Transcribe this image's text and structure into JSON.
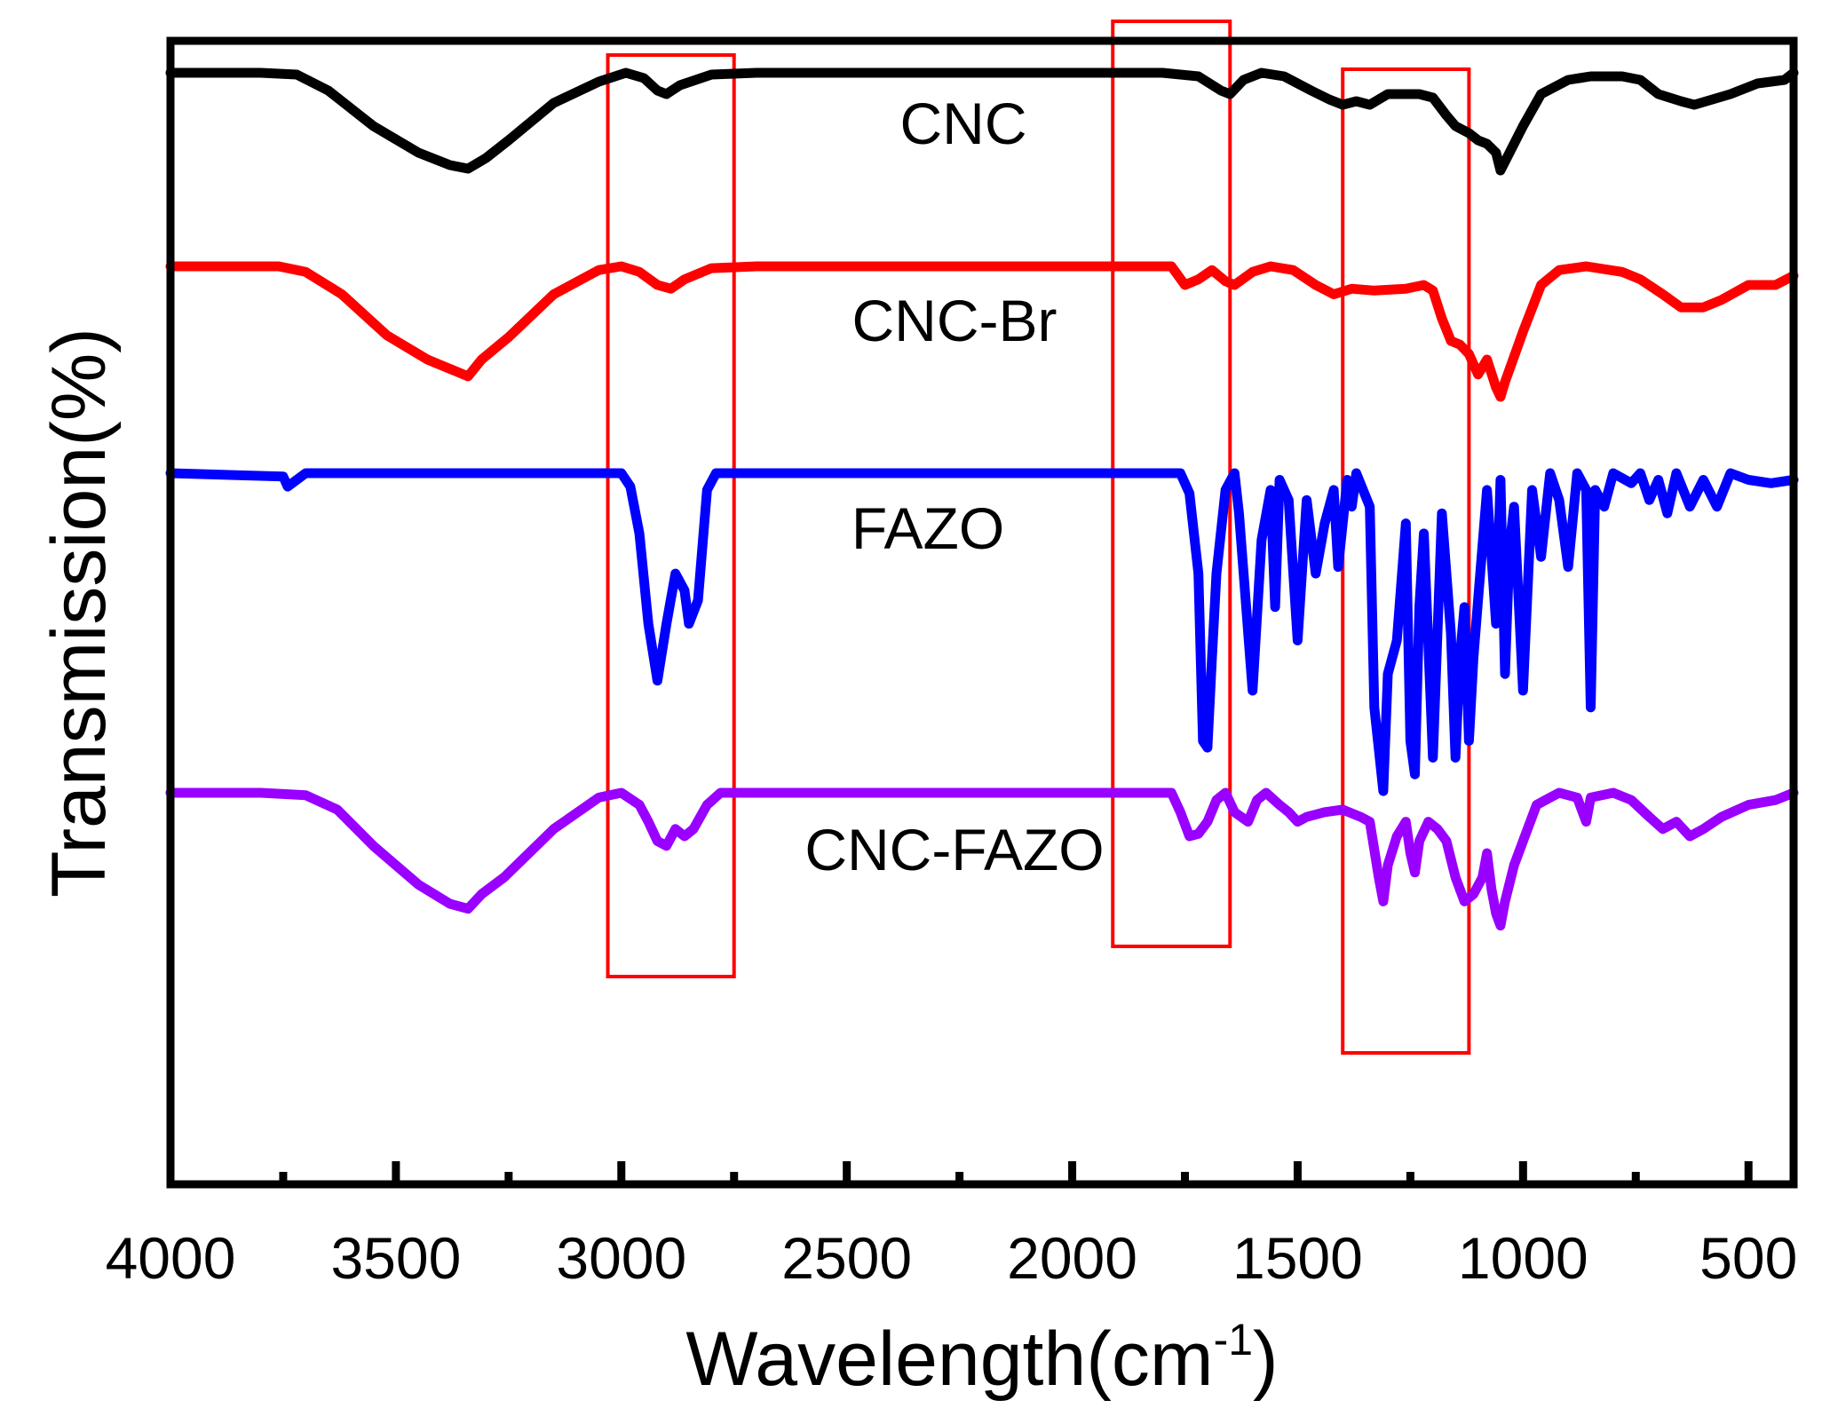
{
  "chart_data": {
    "type": "line",
    "title": "",
    "xlabel": "Wavelength(cm",
    "xlabel_sup": "-1",
    "xlabel_close": ")",
    "ylabel": "Transmission(%)",
    "xlim": [
      4000,
      400
    ],
    "x_reversed": true,
    "y_ticks_shown": false,
    "grid": false,
    "legend": "none",
    "x_ticks": [
      4000,
      3500,
      3000,
      2500,
      2000,
      1500,
      1000,
      500
    ],
    "x_tick_labels": [
      "4000",
      "3500",
      "3000",
      "2500",
      "2000",
      "1500",
      "1000",
      "500"
    ],
    "x_minor_ticks": [
      3750,
      3250,
      2750,
      2250,
      1750,
      1250,
      750
    ],
    "highlight_boxes": [
      {
        "x_from": 3030,
        "x_to": 2750,
        "color": "#ff0000"
      },
      {
        "x_from": 1910,
        "x_to": 1650,
        "color": "#ff0000"
      },
      {
        "x_from": 1400,
        "x_to": 1120,
        "color": "#ff0000"
      }
    ],
    "series": [
      {
        "name": "CNC",
        "color": "#000000",
        "offset": 3,
        "label_x": 2000,
        "points": [
          [
            4000,
            1.0
          ],
          [
            3800,
            1.0
          ],
          [
            3720,
            0.99
          ],
          [
            3650,
            0.9
          ],
          [
            3550,
            0.7
          ],
          [
            3450,
            0.55
          ],
          [
            3380,
            0.48
          ],
          [
            3340,
            0.46
          ],
          [
            3300,
            0.52
          ],
          [
            3250,
            0.62
          ],
          [
            3150,
            0.83
          ],
          [
            3050,
            0.95
          ],
          [
            2990,
            1.0
          ],
          [
            2950,
            0.97
          ],
          [
            2920,
            0.9
          ],
          [
            2900,
            0.88
          ],
          [
            2870,
            0.93
          ],
          [
            2800,
            0.99
          ],
          [
            2700,
            1.0
          ],
          [
            1800,
            1.0
          ],
          [
            1720,
            0.98
          ],
          [
            1670,
            0.9
          ],
          [
            1650,
            0.88
          ],
          [
            1620,
            0.96
          ],
          [
            1580,
            1.0
          ],
          [
            1530,
            0.98
          ],
          [
            1470,
            0.9
          ],
          [
            1430,
            0.85
          ],
          [
            1400,
            0.82
          ],
          [
            1370,
            0.84
          ],
          [
            1340,
            0.82
          ],
          [
            1300,
            0.88
          ],
          [
            1230,
            0.88
          ],
          [
            1200,
            0.86
          ],
          [
            1170,
            0.76
          ],
          [
            1150,
            0.7
          ],
          [
            1120,
            0.66
          ],
          [
            1100,
            0.62
          ],
          [
            1080,
            0.6
          ],
          [
            1060,
            0.55
          ],
          [
            1050,
            0.45
          ],
          [
            1040,
            0.5
          ],
          [
            1000,
            0.7
          ],
          [
            960,
            0.88
          ],
          [
            900,
            0.96
          ],
          [
            850,
            0.98
          ],
          [
            780,
            0.98
          ],
          [
            740,
            0.96
          ],
          [
            700,
            0.88
          ],
          [
            650,
            0.84
          ],
          [
            620,
            0.82
          ],
          [
            580,
            0.85
          ],
          [
            540,
            0.88
          ],
          [
            480,
            0.94
          ],
          [
            420,
            0.96
          ],
          [
            400,
            1.0
          ]
        ]
      },
      {
        "name": "CNC-Br",
        "color": "#ff0000",
        "offset": 2,
        "label_x": 2000,
        "points": [
          [
            4000,
            1.0
          ],
          [
            3760,
            1.0
          ],
          [
            3700,
            0.97
          ],
          [
            3620,
            0.85
          ],
          [
            3520,
            0.63
          ],
          [
            3430,
            0.5
          ],
          [
            3370,
            0.44
          ],
          [
            3340,
            0.41
          ],
          [
            3310,
            0.5
          ],
          [
            3250,
            0.62
          ],
          [
            3150,
            0.85
          ],
          [
            3050,
            0.98
          ],
          [
            3000,
            1.0
          ],
          [
            2960,
            0.97
          ],
          [
            2920,
            0.9
          ],
          [
            2890,
            0.88
          ],
          [
            2860,
            0.93
          ],
          [
            2800,
            0.99
          ],
          [
            2700,
            1.0
          ],
          [
            1780,
            1.0
          ],
          [
            1750,
            0.9
          ],
          [
            1720,
            0.93
          ],
          [
            1690,
            0.98
          ],
          [
            1660,
            0.92
          ],
          [
            1640,
            0.9
          ],
          [
            1600,
            0.97
          ],
          [
            1560,
            1.0
          ],
          [
            1510,
            0.98
          ],
          [
            1460,
            0.9
          ],
          [
            1420,
            0.85
          ],
          [
            1380,
            0.88
          ],
          [
            1330,
            0.87
          ],
          [
            1260,
            0.88
          ],
          [
            1220,
            0.9
          ],
          [
            1200,
            0.87
          ],
          [
            1180,
            0.72
          ],
          [
            1160,
            0.6
          ],
          [
            1140,
            0.58
          ],
          [
            1120,
            0.53
          ],
          [
            1100,
            0.42
          ],
          [
            1080,
            0.5
          ],
          [
            1060,
            0.35
          ],
          [
            1050,
            0.3
          ],
          [
            1040,
            0.38
          ],
          [
            1000,
            0.65
          ],
          [
            960,
            0.9
          ],
          [
            920,
            0.98
          ],
          [
            860,
            1.0
          ],
          [
            780,
            0.97
          ],
          [
            740,
            0.93
          ],
          [
            690,
            0.85
          ],
          [
            650,
            0.78
          ],
          [
            600,
            0.78
          ],
          [
            560,
            0.82
          ],
          [
            500,
            0.9
          ],
          [
            440,
            0.9
          ],
          [
            400,
            0.95
          ]
        ]
      },
      {
        "name": "FAZO",
        "color": "#0000ff",
        "offset": 1,
        "label_x": 2000,
        "points": [
          [
            4000,
            1.0
          ],
          [
            3750,
            0.99
          ],
          [
            3740,
            0.96
          ],
          [
            3700,
            1.0
          ],
          [
            3000,
            1.0
          ],
          [
            2980,
            0.96
          ],
          [
            2960,
            0.82
          ],
          [
            2940,
            0.55
          ],
          [
            2920,
            0.38
          ],
          [
            2900,
            0.55
          ],
          [
            2880,
            0.7
          ],
          [
            2860,
            0.65
          ],
          [
            2850,
            0.55
          ],
          [
            2830,
            0.62
          ],
          [
            2810,
            0.95
          ],
          [
            2790,
            1.0
          ],
          [
            1760,
            1.0
          ],
          [
            1740,
            0.94
          ],
          [
            1720,
            0.7
          ],
          [
            1710,
            0.2
          ],
          [
            1700,
            0.18
          ],
          [
            1690,
            0.45
          ],
          [
            1680,
            0.7
          ],
          [
            1660,
            0.95
          ],
          [
            1640,
            1.0
          ],
          [
            1630,
            0.88
          ],
          [
            1600,
            0.35
          ],
          [
            1580,
            0.8
          ],
          [
            1560,
            0.95
          ],
          [
            1550,
            0.6
          ],
          [
            1540,
            0.98
          ],
          [
            1520,
            0.92
          ],
          [
            1500,
            0.5
          ],
          [
            1480,
            0.92
          ],
          [
            1460,
            0.7
          ],
          [
            1440,
            0.85
          ],
          [
            1420,
            0.95
          ],
          [
            1410,
            0.72
          ],
          [
            1390,
            0.98
          ],
          [
            1380,
            0.9
          ],
          [
            1370,
            1.0
          ],
          [
            1340,
            0.9
          ],
          [
            1330,
            0.3
          ],
          [
            1310,
            0.05
          ],
          [
            1300,
            0.4
          ],
          [
            1280,
            0.5
          ],
          [
            1260,
            0.85
          ],
          [
            1250,
            0.2
          ],
          [
            1240,
            0.1
          ],
          [
            1230,
            0.6
          ],
          [
            1220,
            0.82
          ],
          [
            1200,
            0.15
          ],
          [
            1180,
            0.88
          ],
          [
            1160,
            0.52
          ],
          [
            1150,
            0.15
          ],
          [
            1140,
            0.45
          ],
          [
            1130,
            0.6
          ],
          [
            1120,
            0.2
          ],
          [
            1110,
            0.45
          ],
          [
            1100,
            0.62
          ],
          [
            1080,
            0.95
          ],
          [
            1060,
            0.55
          ],
          [
            1050,
            0.98
          ],
          [
            1040,
            0.4
          ],
          [
            1030,
            0.78
          ],
          [
            1020,
            0.9
          ],
          [
            1000,
            0.35
          ],
          [
            980,
            0.95
          ],
          [
            960,
            0.75
          ],
          [
            940,
            1.0
          ],
          [
            920,
            0.92
          ],
          [
            900,
            0.72
          ],
          [
            880,
            1.0
          ],
          [
            860,
            0.95
          ],
          [
            850,
            0.3
          ],
          [
            840,
            0.95
          ],
          [
            820,
            0.9
          ],
          [
            800,
            1.0
          ],
          [
            760,
            0.97
          ],
          [
            740,
            1.0
          ],
          [
            720,
            0.92
          ],
          [
            700,
            0.98
          ],
          [
            680,
            0.88
          ],
          [
            660,
            1.0
          ],
          [
            630,
            0.9
          ],
          [
            600,
            0.98
          ],
          [
            570,
            0.9
          ],
          [
            540,
            1.0
          ],
          [
            500,
            0.98
          ],
          [
            450,
            0.97
          ],
          [
            400,
            0.98
          ]
        ]
      },
      {
        "name": "CNC-FAZO",
        "color": "#9900ff",
        "offset": 0,
        "label_x": 2000,
        "points": [
          [
            4000,
            1.0
          ],
          [
            3800,
            1.0
          ],
          [
            3700,
            0.99
          ],
          [
            3630,
            0.93
          ],
          [
            3550,
            0.78
          ],
          [
            3450,
            0.62
          ],
          [
            3380,
            0.54
          ],
          [
            3340,
            0.52
          ],
          [
            3310,
            0.58
          ],
          [
            3260,
            0.65
          ],
          [
            3150,
            0.85
          ],
          [
            3050,
            0.98
          ],
          [
            3000,
            1.0
          ],
          [
            2960,
            0.95
          ],
          [
            2940,
            0.88
          ],
          [
            2920,
            0.8
          ],
          [
            2900,
            0.78
          ],
          [
            2880,
            0.85
          ],
          [
            2860,
            0.82
          ],
          [
            2840,
            0.85
          ],
          [
            2810,
            0.95
          ],
          [
            2780,
            1.0
          ],
          [
            1780,
            1.0
          ],
          [
            1760,
            0.92
          ],
          [
            1740,
            0.82
          ],
          [
            1720,
            0.83
          ],
          [
            1700,
            0.88
          ],
          [
            1680,
            0.97
          ],
          [
            1660,
            1.0
          ],
          [
            1640,
            0.92
          ],
          [
            1610,
            0.88
          ],
          [
            1590,
            0.97
          ],
          [
            1570,
            1.0
          ],
          [
            1540,
            0.95
          ],
          [
            1520,
            0.92
          ],
          [
            1500,
            0.88
          ],
          [
            1480,
            0.9
          ],
          [
            1440,
            0.92
          ],
          [
            1400,
            0.93
          ],
          [
            1360,
            0.9
          ],
          [
            1340,
            0.88
          ],
          [
            1320,
            0.65
          ],
          [
            1310,
            0.55
          ],
          [
            1300,
            0.7
          ],
          [
            1280,
            0.82
          ],
          [
            1260,
            0.88
          ],
          [
            1250,
            0.75
          ],
          [
            1240,
            0.67
          ],
          [
            1230,
            0.8
          ],
          [
            1210,
            0.88
          ],
          [
            1190,
            0.85
          ],
          [
            1170,
            0.8
          ],
          [
            1150,
            0.65
          ],
          [
            1130,
            0.55
          ],
          [
            1110,
            0.58
          ],
          [
            1090,
            0.65
          ],
          [
            1080,
            0.75
          ],
          [
            1070,
            0.6
          ],
          [
            1060,
            0.5
          ],
          [
            1050,
            0.45
          ],
          [
            1040,
            0.55
          ],
          [
            1020,
            0.7
          ],
          [
            1000,
            0.8
          ],
          [
            970,
            0.95
          ],
          [
            940,
            0.98
          ],
          [
            920,
            1.0
          ],
          [
            880,
            0.98
          ],
          [
            860,
            0.88
          ],
          [
            850,
            0.98
          ],
          [
            800,
            1.0
          ],
          [
            760,
            0.97
          ],
          [
            720,
            0.9
          ],
          [
            690,
            0.85
          ],
          [
            660,
            0.88
          ],
          [
            630,
            0.82
          ],
          [
            600,
            0.85
          ],
          [
            560,
            0.9
          ],
          [
            500,
            0.95
          ],
          [
            440,
            0.97
          ],
          [
            400,
            1.0
          ]
        ]
      }
    ]
  }
}
